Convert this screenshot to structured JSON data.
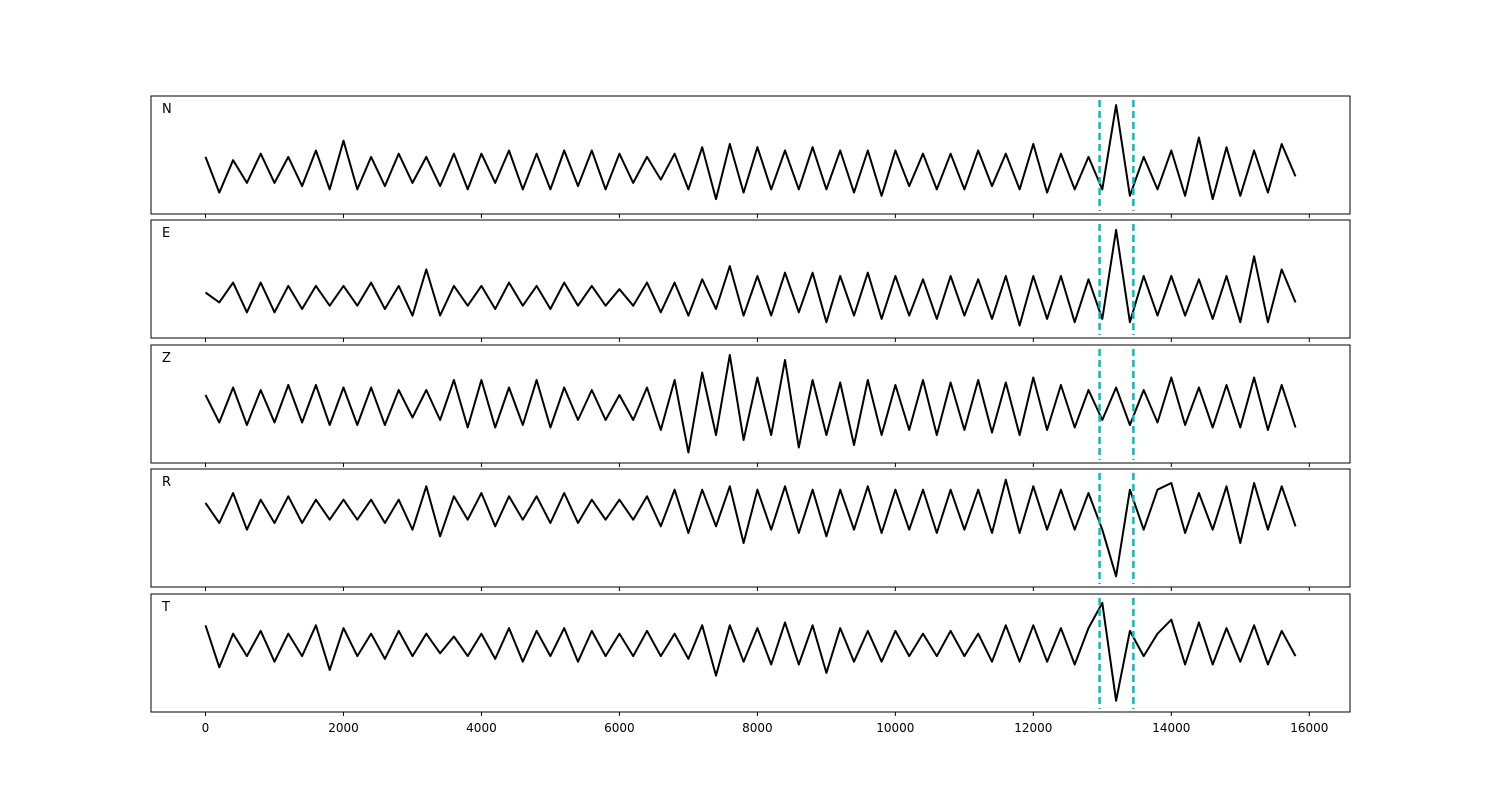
{
  "chart_data": {
    "type": "line",
    "xlim": [
      -790,
      16590
    ],
    "x_ticks": [
      0,
      2000,
      4000,
      6000,
      8000,
      10000,
      12000,
      14000,
      16000
    ],
    "x_tick_labels": [
      "0",
      "2000",
      "4000",
      "6000",
      "8000",
      "10000",
      "12000",
      "14000",
      "16000"
    ],
    "x_start": 0,
    "x_step": 200,
    "grid": false,
    "line_color": "#000000",
    "markers": {
      "x": [
        12960,
        13450
      ],
      "color": "#00bfbf",
      "style": "dashed"
    },
    "panels": [
      {
        "label": "N",
        "ylim": [
          -0.68,
          1.14
        ],
        "values": [
          0.2,
          -0.35,
          0.15,
          -0.2,
          0.25,
          -0.2,
          0.2,
          -0.25,
          0.3,
          -0.3,
          0.45,
          -0.3,
          0.2,
          -0.25,
          0.25,
          -0.2,
          0.2,
          -0.25,
          0.25,
          -0.3,
          0.25,
          -0.2,
          0.3,
          -0.3,
          0.25,
          -0.3,
          0.3,
          -0.25,
          0.3,
          -0.3,
          0.25,
          -0.2,
          0.2,
          -0.15,
          0.25,
          -0.3,
          0.35,
          -0.45,
          0.4,
          -0.35,
          0.35,
          -0.3,
          0.3,
          -0.3,
          0.35,
          -0.3,
          0.3,
          -0.35,
          0.3,
          -0.4,
          0.3,
          -0.25,
          0.25,
          -0.3,
          0.25,
          -0.3,
          0.3,
          -0.25,
          0.25,
          -0.3,
          0.4,
          -0.35,
          0.25,
          -0.3,
          0.2,
          -0.3,
          1.0,
          -0.4,
          0.2,
          -0.3,
          0.3,
          -0.4,
          0.5,
          -0.45,
          0.35,
          -0.4,
          0.3,
          -0.35,
          0.4,
          -0.1
        ]
      },
      {
        "label": "E",
        "ylim": [
          -0.64,
          1.15
        ],
        "values": [
          0.05,
          -0.1,
          0.2,
          -0.25,
          0.2,
          -0.25,
          0.15,
          -0.2,
          0.15,
          -0.15,
          0.15,
          -0.15,
          0.2,
          -0.2,
          0.15,
          -0.3,
          0.4,
          -0.3,
          0.15,
          -0.15,
          0.15,
          -0.2,
          0.2,
          -0.15,
          0.15,
          -0.2,
          0.2,
          -0.15,
          0.15,
          -0.15,
          0.1,
          -0.15,
          0.2,
          -0.25,
          0.2,
          -0.3,
          0.25,
          -0.2,
          0.45,
          -0.3,
          0.3,
          -0.3,
          0.35,
          -0.25,
          0.35,
          -0.4,
          0.3,
          -0.3,
          0.35,
          -0.35,
          0.3,
          -0.3,
          0.25,
          -0.35,
          0.3,
          -0.3,
          0.25,
          -0.35,
          0.3,
          -0.45,
          0.3,
          -0.35,
          0.3,
          -0.4,
          0.25,
          -0.35,
          1.0,
          -0.4,
          0.3,
          -0.3,
          0.3,
          -0.3,
          0.25,
          -0.35,
          0.3,
          -0.4,
          0.6,
          -0.4,
          0.4,
          -0.1
        ]
      },
      {
        "label": "Z",
        "ylim": [
          -1.16,
          1.2
        ],
        "values": [
          0.2,
          -0.35,
          0.35,
          -0.4,
          0.3,
          -0.35,
          0.4,
          -0.35,
          0.4,
          -0.4,
          0.35,
          -0.4,
          0.35,
          -0.4,
          0.3,
          -0.25,
          0.3,
          -0.3,
          0.5,
          -0.45,
          0.5,
          -0.45,
          0.35,
          -0.4,
          0.5,
          -0.45,
          0.35,
          -0.3,
          0.3,
          -0.3,
          0.2,
          -0.3,
          0.35,
          -0.5,
          0.5,
          -0.95,
          0.65,
          -0.6,
          1.0,
          -0.7,
          0.55,
          -0.6,
          0.9,
          -0.85,
          0.5,
          -0.6,
          0.45,
          -0.8,
          0.5,
          -0.6,
          0.4,
          -0.5,
          0.5,
          -0.6,
          0.45,
          -0.5,
          0.5,
          -0.55,
          0.45,
          -0.6,
          0.55,
          -0.5,
          0.4,
          -0.45,
          0.3,
          -0.3,
          0.35,
          -0.4,
          0.3,
          -0.35,
          0.55,
          -0.4,
          0.35,
          -0.45,
          0.4,
          -0.45,
          0.55,
          -0.5,
          0.4,
          -0.45
        ]
      },
      {
        "label": "R",
        "ylim": [
          -1.16,
          0.61
        ],
        "values": [
          0.1,
          -0.2,
          0.25,
          -0.3,
          0.15,
          -0.2,
          0.2,
          -0.2,
          0.15,
          -0.15,
          0.15,
          -0.15,
          0.15,
          -0.2,
          0.15,
          -0.3,
          0.35,
          -0.4,
          0.2,
          -0.15,
          0.25,
          -0.25,
          0.2,
          -0.15,
          0.2,
          -0.2,
          0.25,
          -0.2,
          0.15,
          -0.15,
          0.15,
          -0.15,
          0.2,
          -0.25,
          0.3,
          -0.35,
          0.3,
          -0.25,
          0.35,
          -0.5,
          0.3,
          -0.3,
          0.35,
          -0.35,
          0.3,
          -0.4,
          0.3,
          -0.3,
          0.35,
          -0.35,
          0.3,
          -0.3,
          0.3,
          -0.35,
          0.3,
          -0.3,
          0.3,
          -0.35,
          0.45,
          -0.35,
          0.35,
          -0.3,
          0.3,
          -0.3,
          0.25,
          -0.3,
          -1.0,
          0.3,
          -0.3,
          0.3,
          0.4,
          -0.35,
          0.25,
          -0.3,
          0.35,
          -0.5,
          0.4,
          -0.3,
          0.35,
          -0.25
        ]
      },
      {
        "label": "T",
        "ylim": [
          -1.2,
          0.91
        ],
        "values": [
          0.35,
          -0.4,
          0.2,
          -0.2,
          0.25,
          -0.3,
          0.2,
          -0.2,
          0.35,
          -0.45,
          0.3,
          -0.2,
          0.2,
          -0.25,
          0.25,
          -0.2,
          0.2,
          -0.15,
          0.15,
          -0.2,
          0.2,
          -0.25,
          0.3,
          -0.3,
          0.25,
          -0.2,
          0.3,
          -0.3,
          0.25,
          -0.2,
          0.2,
          -0.2,
          0.25,
          -0.2,
          0.2,
          -0.25,
          0.35,
          -0.55,
          0.35,
          -0.3,
          0.3,
          -0.35,
          0.4,
          -0.35,
          0.35,
          -0.5,
          0.3,
          -0.3,
          0.25,
          -0.3,
          0.25,
          -0.2,
          0.2,
          -0.2,
          0.25,
          -0.2,
          0.2,
          -0.3,
          0.35,
          -0.3,
          0.35,
          -0.3,
          0.3,
          -0.35,
          0.3,
          0.75,
          -1.0,
          0.25,
          -0.2,
          0.2,
          0.45,
          -0.35,
          0.4,
          -0.35,
          0.3,
          -0.3,
          0.35,
          -0.35,
          0.25,
          -0.2
        ]
      }
    ]
  }
}
